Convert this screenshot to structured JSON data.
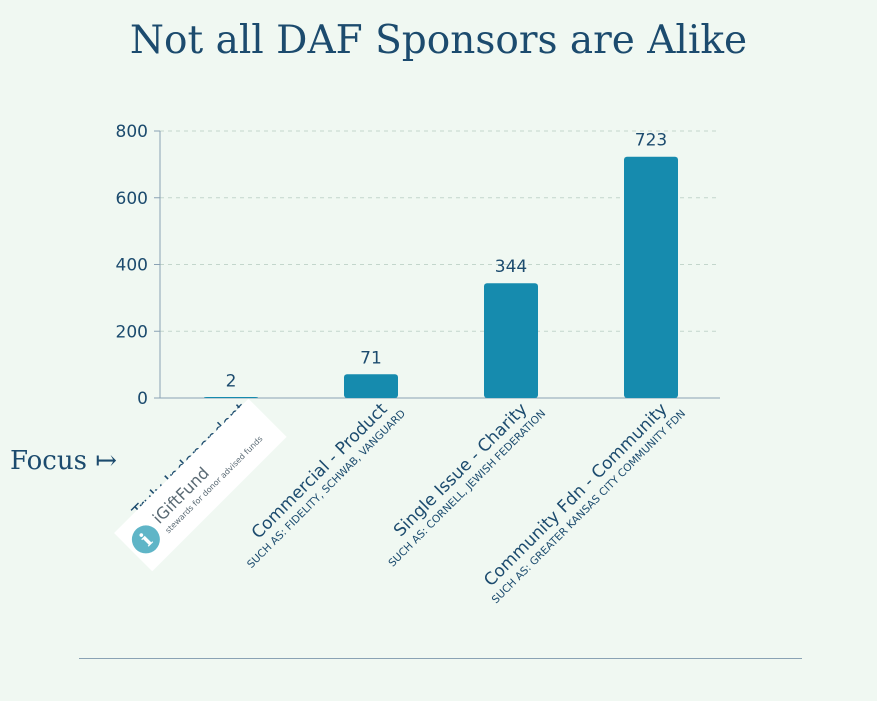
{
  "title": "Not all DAF Sponsors are Alike",
  "focus": {
    "label": "Focus",
    "arrow": "↦"
  },
  "logo": {
    "name": "iGiftFund",
    "tagline": "stewards for donor advised funds",
    "glyph": "i"
  },
  "colors": {
    "bar": "#168bae",
    "text": "#1c4b6e",
    "axis": "#8aa2b4",
    "grid": "#c3d6cc",
    "logo_circle": "#5fb5c7"
  },
  "chart_data": {
    "type": "bar",
    "categories": [
      "Truly Independent",
      "Commercial - Product",
      "Single Issue - Charity",
      "Community Fdn - Community"
    ],
    "subtitles": [
      "",
      "SUCH AS: FIDELITY, SCHWAB, VANGUARD",
      "SUCH AS: CORNELL, JEWISH FEDERATION",
      "SUCH AS: GREATER KANSAS CITY COMMUNITY FDN"
    ],
    "values": [
      2,
      71,
      344,
      723
    ],
    "data_labels": [
      "2",
      "71",
      "344",
      "723"
    ],
    "yticks": [
      0,
      200,
      400,
      600,
      800
    ],
    "ylim": [
      0,
      800
    ],
    "grid": true,
    "xlabel": "",
    "ylabel": ""
  }
}
